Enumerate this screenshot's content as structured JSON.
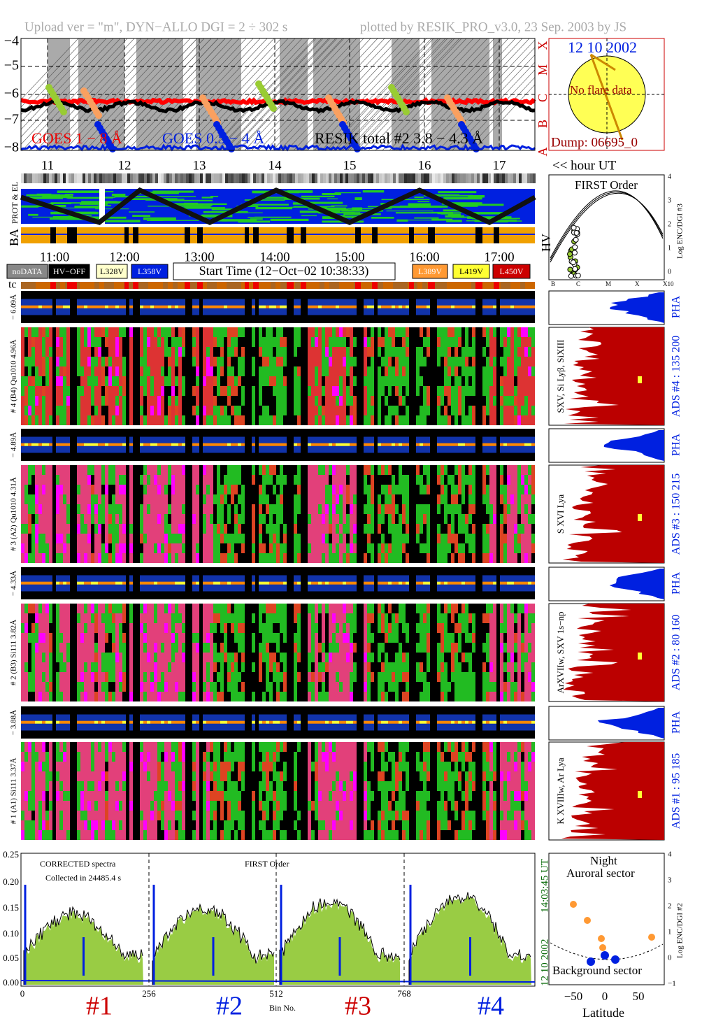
{
  "header": {
    "upload": "Upload ver = \"m\", DYN−ALLO DGI =   2 ÷ 302 s",
    "plotted": "plotted by RESIK_PRO_v3.0, 23 Sep. 2003 by JS"
  },
  "goes_panel": {
    "yticks": [
      "−4",
      "−5",
      "−6",
      "−7",
      "−8"
    ],
    "classes": [
      "X",
      "M",
      "C",
      "B",
      "A"
    ],
    "legend": [
      "GOES 1 − 8 Å",
      "GOES 0.5 − 4 Å",
      "RESIK total #2  3.8 − 4.3 Å"
    ]
  },
  "flare_inset": {
    "date": "12 10 2002",
    "note": "No flare data",
    "dump": "Dump: 06695_0"
  },
  "hours": {
    "labels": [
      "11",
      "12",
      "13",
      "14",
      "15",
      "16",
      "17"
    ],
    "unit": "<< hour UT"
  },
  "strip_labels": {
    "prot": "PROT & EL",
    "ba": "BA",
    "hv": "HV",
    "tc": "tc"
  },
  "times": [
    "11:00",
    "12:00",
    "13:00",
    "14:00",
    "15:00",
    "16:00",
    "17:00"
  ],
  "legend": {
    "nodata": "noDATA",
    "hvoff": "HV−OFF",
    "l328": "L328V",
    "l358": "L358V",
    "start": "Start Time (12−Oct−02 10:38:33)",
    "l389": "L389V",
    "l419": "L419V",
    "l450": "L450V"
  },
  "first_order": {
    "title": "FIRST Order",
    "yticks": [
      "4",
      "3",
      "2",
      "1",
      "0"
    ],
    "xticks": [
      "B",
      "C",
      "M",
      "X",
      "X10"
    ],
    "ylabel": "Log ENC/DGI #3"
  },
  "channels": [
    {
      "pha_label": "− 6.09Å",
      "ads_label": "# 4 (B4) Qu1010 4.96Å",
      "lines": "SXV, Si Lyβ, SiXIII",
      "ads_right": "ADS #4 :  135 200",
      "pha_right": "PHA"
    },
    {
      "pha_label": "− 4.89Å",
      "ads_label": "# 3 (A2) Qu1010 4.31Å",
      "lines": "S XVI Lya",
      "ads_right": "ADS #3 :  150 215",
      "pha_right": "PHA"
    },
    {
      "pha_label": "− 4.33Å",
      "ads_label": "# 2 (B3) Si111 3.82Å",
      "lines": "ArXVIIw, SXV 1s−np",
      "ads_right": "ADS #2 :  80 160",
      "pha_right": "PHA"
    },
    {
      "pha_label": "− 3.88Å",
      "ads_label": "# 1 (A1) Si111 3.37Å",
      "lines": "K XVIIIw, Ar Lya",
      "ads_right": "ADS #1 :  95 185",
      "pha_right": "PHA"
    }
  ],
  "spectrum": {
    "title": "CORRECTED spectra",
    "collected": "Collected in 24485.4 s",
    "order": "FIRST Order",
    "yticks": [
      "0.25",
      "0.20",
      "0.15",
      "0.10",
      "0.05",
      "0.00"
    ],
    "xticks": [
      "0",
      "256",
      "512",
      "768"
    ],
    "xlabel": "Bin No.",
    "date": "12 10 2002",
    "time": "14:03:45 UT",
    "sections": [
      "#1",
      "#2",
      "#3",
      "#4"
    ]
  },
  "auroral": {
    "night": "Night",
    "auroral": "Auroral sector",
    "background": "Background sector",
    "xlabel": "Latitude",
    "xticks": [
      "−50",
      "0",
      "50"
    ],
    "yticks": [
      "4",
      "3",
      "2",
      "1",
      "0",
      "−1"
    ],
    "ylabel": "Log ENC/DGI #2"
  }
}
